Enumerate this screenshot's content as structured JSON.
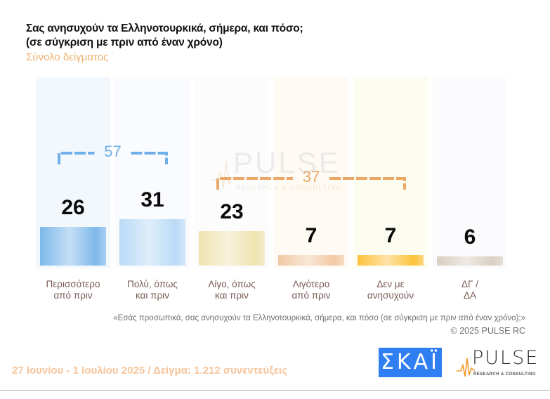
{
  "chart_data": {
    "type": "bar",
    "title": "Σας ανησυχούν τα Ελληνοτουρκικά, σήμερα, και πόσο;",
    "title_line2": "(σε σύγκριση με πριν από έναν χρόνο)",
    "subtitle": "Σύνολο δείγματος",
    "categories": [
      [
        "Περισσότερο",
        "από πριν"
      ],
      [
        "Πολύ, όπως",
        "και πριν"
      ],
      [
        "Λίγο, όπως",
        "και πριν"
      ],
      [
        "Λιγότερο",
        "από πριν"
      ],
      [
        "Δεν με",
        "ανησυχούν"
      ],
      [
        "ΔΓ /",
        "ΔΑ"
      ]
    ],
    "values": [
      26,
      31,
      23,
      7,
      7,
      6
    ],
    "value_labels": [
      "26",
      "31",
      "23",
      "7",
      "7",
      "6"
    ],
    "ylim": [
      0,
      100
    ],
    "grid": false,
    "legend": "none",
    "bar_colors": [
      "#7db8ea",
      "#b9daf6",
      "#efe3b0",
      "#f1c9a4",
      "#fcc23c",
      "#d9cfc2"
    ],
    "panel_colors": [
      "#f3f8fd",
      "#fafbfe",
      "#fcfcfd",
      "#fffaf4",
      "#fdfcf1",
      "#fbfafc"
    ],
    "groupings": [
      {
        "label": "57",
        "from": 0,
        "to": 1,
        "color": "#6fb0ea"
      },
      {
        "label": "37",
        "from": 2,
        "to": 4,
        "color": "#eaa866"
      }
    ]
  },
  "watermark": {
    "word": "PULSE",
    "sub": "RESEARCH & CONSULTING"
  },
  "question_quote": "«Εσάς προσωπικά, σας ανησυχούν τα Ελληνοτουρκικά, σήμερα, και πόσο (σε σύγκριση με πριν από έναν χρόνο);»",
  "copyright": "©  2025  PULSE RC",
  "footer": {
    "fieldwork": "27 Ιουνίου - 1 Ιουλίου 2025  /  Δείγμα:  1.212 συνεντεύξεις",
    "skai_logo": "ΣΚΑΪ",
    "pulse_logo": "PULSE",
    "pulse_logo_sub": "RESEARCH & CONSULTING"
  }
}
